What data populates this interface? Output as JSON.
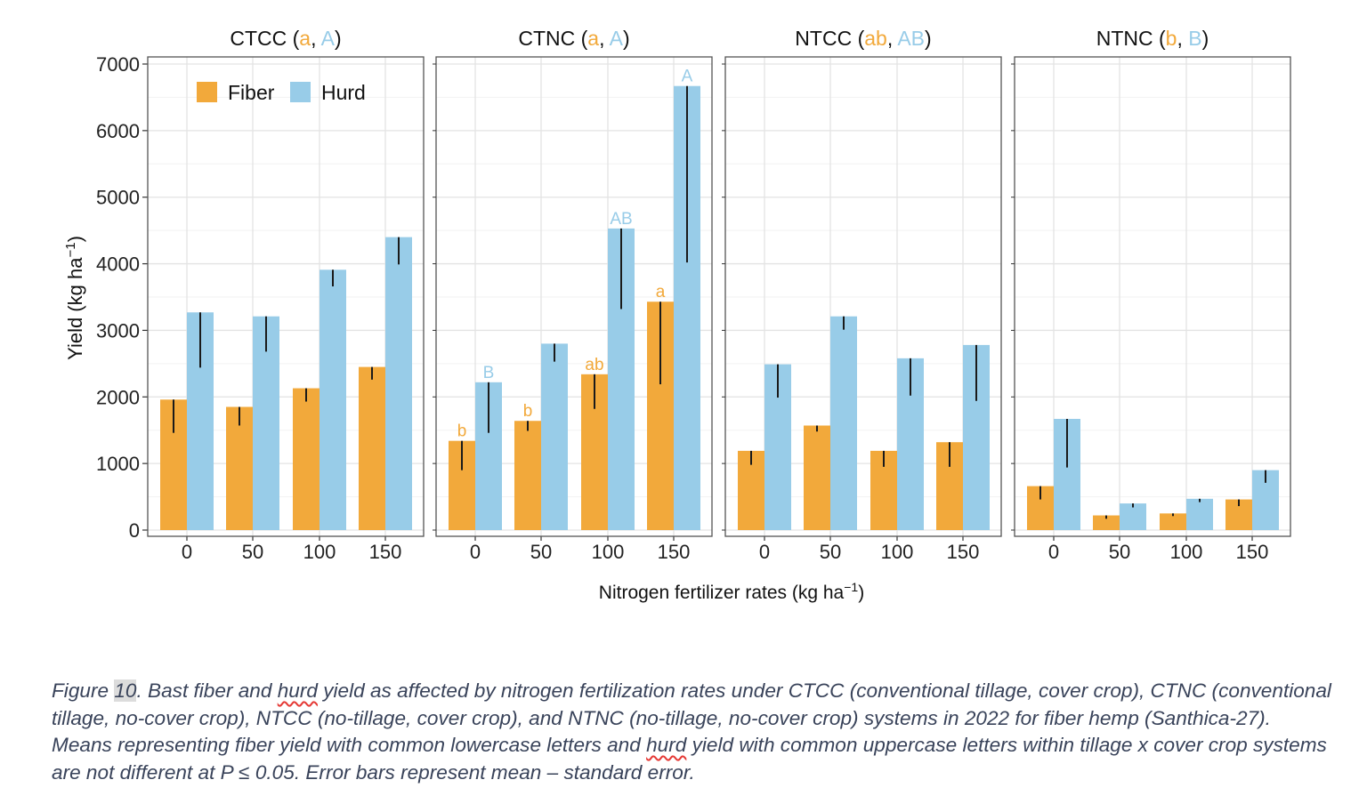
{
  "colors": {
    "fiber": "#F2A93B",
    "hurd": "#98CCE8",
    "lower_letter": "#F2A93B",
    "upper_letter": "#98CCE8",
    "caption_text": "#39435a"
  },
  "chart_data": {
    "type": "bar",
    "ylabel": "Yield (kg ha",
    "ylabel_sup": "−1",
    "ylabel_close": ")",
    "xlabel": "Nitrogen fertilizer rates (kg ha",
    "xlabel_sup": "−1",
    "xlabel_close": ")",
    "ylim": [
      0,
      7000
    ],
    "yticks": [
      0,
      1000,
      2000,
      3000,
      4000,
      5000,
      6000,
      7000
    ],
    "categories": [
      "0",
      "50",
      "100",
      "150"
    ],
    "legend": {
      "position": "top-left",
      "entries": [
        "Fiber",
        "Hurd"
      ]
    },
    "facets": [
      {
        "title": "CTCC",
        "fiber_group": "a",
        "hurd_group": "A",
        "series": [
          {
            "name": "Fiber",
            "values": [
              1960,
              1850,
              2130,
              2450
            ],
            "error_low": [
              1460,
              1570,
              1930,
              2260
            ]
          },
          {
            "name": "Hurd",
            "values": [
              3270,
              3210,
              3910,
              4400
            ],
            "error_low": [
              2440,
              2680,
              3660,
              3990
            ]
          }
        ],
        "bar_labels": {
          "Fiber": [
            "",
            "",
            "",
            ""
          ],
          "Hurd": [
            "",
            "",
            "",
            ""
          ]
        }
      },
      {
        "title": "CTNC",
        "fiber_group": "a",
        "hurd_group": "A",
        "series": [
          {
            "name": "Fiber",
            "values": [
              1340,
              1640,
              2340,
              3430
            ],
            "error_low": [
              900,
              1490,
              1820,
              2190
            ]
          },
          {
            "name": "Hurd",
            "values": [
              2220,
              2800,
              4530,
              6670
            ],
            "error_low": [
              1460,
              2530,
              3320,
              4020
            ]
          }
        ],
        "bar_labels": {
          "Fiber": [
            "b",
            "b",
            "ab",
            "a"
          ],
          "Hurd": [
            "B",
            "",
            "AB",
            "A"
          ]
        }
      },
      {
        "title": "NTCC",
        "fiber_group": "ab",
        "hurd_group": "AB",
        "series": [
          {
            "name": "Fiber",
            "values": [
              1190,
              1570,
              1190,
              1320
            ],
            "error_low": [
              980,
              1480,
              950,
              950
            ]
          },
          {
            "name": "Hurd",
            "values": [
              2490,
              3210,
              2580,
              2780
            ],
            "error_low": [
              1990,
              3010,
              2020,
              1940
            ]
          }
        ],
        "bar_labels": {
          "Fiber": [
            "",
            "",
            "",
            ""
          ],
          "Hurd": [
            "",
            "",
            "",
            ""
          ]
        }
      },
      {
        "title": "NTNC",
        "fiber_group": "b",
        "hurd_group": "B",
        "series": [
          {
            "name": "Fiber",
            "values": [
              660,
              220,
              250,
              460
            ],
            "error_low": [
              460,
              170,
              210,
              360
            ]
          },
          {
            "name": "Hurd",
            "values": [
              1670,
              400,
              470,
              900
            ],
            "error_low": [
              940,
              340,
              420,
              710
            ]
          }
        ],
        "bar_labels": {
          "Fiber": [
            "",
            "",
            "",
            ""
          ],
          "Hurd": [
            "",
            "",
            "",
            ""
          ]
        }
      }
    ]
  },
  "caption": {
    "figure_word": "Figure ",
    "figure_number": "10",
    "part1": ". Bast fiber and ",
    "hurd_word_1": "hurd",
    "part2": " yield as affected by nitrogen fertilization rates under CTCC (conventional tillage, cover crop), CTNC (conventional tillage, no-cover crop), NTCC (no-tillage, cover crop), and NTNC (no-tillage, no-cover crop) systems in 2022 for fiber hemp (Santhica-27). Means representing fiber yield with common lowercase letters and ",
    "hurd_word_2": "hurd",
    "part3": " yield with common uppercase letters within tillage x cover crop systems are not different at P ≤ 0.05. Error bars represent mean – standard error."
  }
}
